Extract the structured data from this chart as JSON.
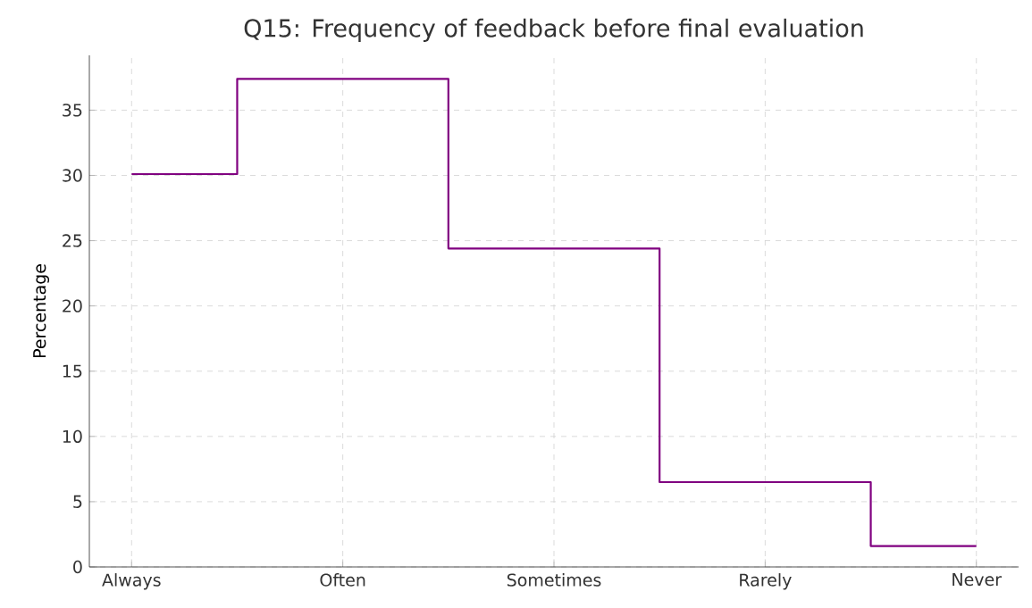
{
  "chart_data": {
    "type": "step",
    "title": "Q15: Frequency of feedback before final evaluation",
    "ylabel": "Percentage",
    "categories": [
      "Always",
      "Often",
      "Sometimes",
      "Rarely",
      "Never"
    ],
    "values": [
      30.1,
      37.4,
      24.4,
      6.5,
      1.6
    ],
    "color": "#800080",
    "ylim": [
      0,
      39.2
    ],
    "yticks": [
      0,
      5,
      10,
      15,
      20,
      25,
      30,
      35
    ],
    "grid": true
  }
}
